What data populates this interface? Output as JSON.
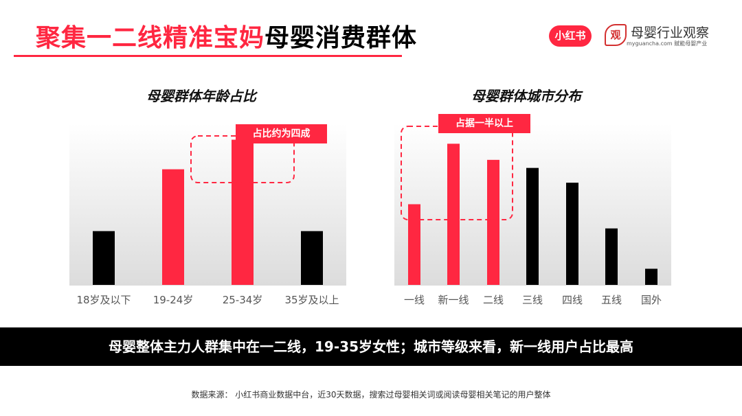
{
  "header": {
    "title_accent": "聚集一二线精准宝妈",
    "title_rest": "母婴消费群体",
    "logo_xhs": "小红书",
    "brand_mark": "观",
    "brand_name": "母婴行业观察",
    "brand_url": "myguancha.com 赋能母婴产业"
  },
  "annotations": {
    "age": "占比约为四成",
    "city": "占据一半以上"
  },
  "summary": "母婴整体主力人群集中在一二线，19-35岁女性；城市等级来看，新一线用户占比最高",
  "source": "数据来源：  小红书商业数据中台，近30天数据，搜索过母婴相关词或阅读母婴相关笔记的用户整体",
  "colors": {
    "highlight": "#ff2741",
    "normal": "#000000"
  },
  "chart_data": [
    {
      "type": "bar",
      "title": "母婴群体年龄占比",
      "categories": [
        "18岁及以下",
        "19-24岁",
        "25-34岁",
        "35岁及以上"
      ],
      "values": [
        20,
        43,
        54,
        20
      ],
      "highlight": [
        false,
        true,
        true,
        false
      ],
      "ylim": [
        0,
        60
      ],
      "grid": false
    },
    {
      "type": "bar",
      "title": "母婴群体城市分布",
      "categories": [
        "一线",
        "新一线",
        "二线",
        "三线",
        "四线",
        "五线",
        "国外"
      ],
      "values": [
        30,
        52.5,
        46.5,
        43.5,
        38,
        21,
        6
      ],
      "highlight": [
        true,
        true,
        true,
        false,
        false,
        false,
        false
      ],
      "ylim": [
        0,
        60
      ],
      "grid": false
    }
  ]
}
